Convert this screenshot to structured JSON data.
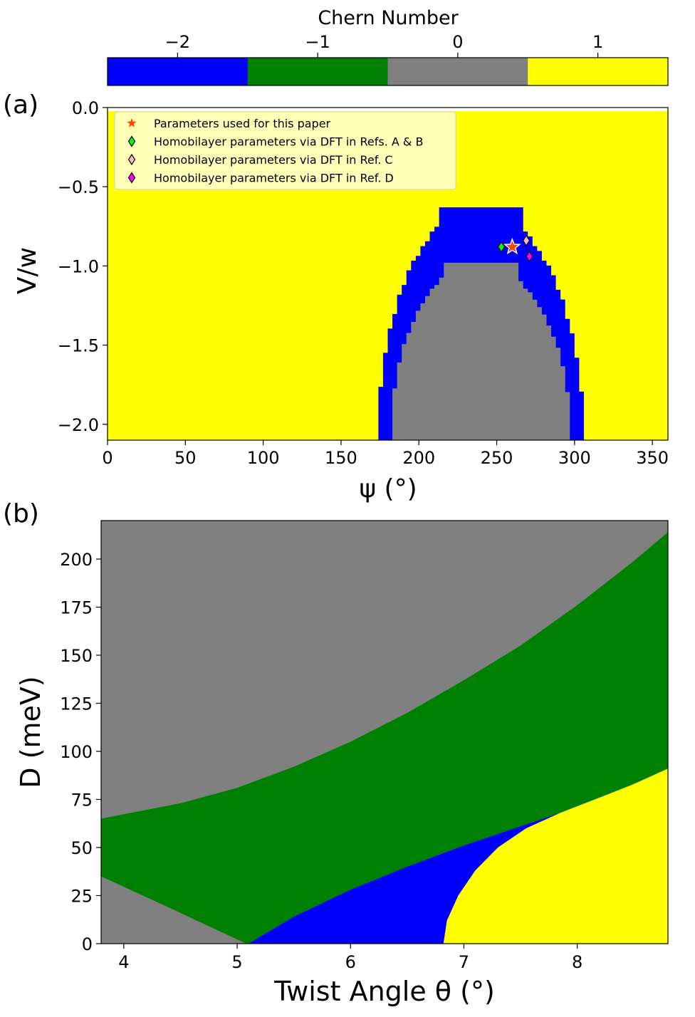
{
  "colorbar": {
    "label": "Chern Number",
    "tick_labels": [
      "−2",
      "−1",
      "0",
      "1"
    ],
    "entries": [
      {
        "value": -2,
        "color": "#0000ff"
      },
      {
        "value": -1,
        "color": "#008000"
      },
      {
        "value": 0,
        "color": "#808080"
      },
      {
        "value": 1,
        "color": "#ffff00"
      }
    ]
  },
  "chart_data": [
    {
      "type": "heatmap",
      "panel_label": "(a)",
      "title": "",
      "xlabel": "ψ (°)",
      "ylabel": "V/w",
      "xlim": [
        0,
        360
      ],
      "ylim": [
        -2.1,
        0.0
      ],
      "xticks": [
        0,
        50,
        100,
        150,
        200,
        250,
        300,
        350
      ],
      "xtick_labels": [
        "0",
        "50",
        "100",
        "150",
        "200",
        "250",
        "300",
        "350"
      ],
      "yticks": [
        0.0,
        -0.5,
        -1.0,
        -1.5,
        -2.0
      ],
      "ytick_labels": [
        "0.0",
        "−0.5",
        "−1.0",
        "−1.5",
        "−2.0"
      ],
      "background_chern": 1,
      "regions": [
        {
          "chern": -2,
          "name": "outer-dome",
          "center_psi": 240,
          "half_width_psi": 66,
          "top": -0.63,
          "bottom": -2.1
        },
        {
          "chern": 0,
          "name": "inner-dome",
          "center_psi": 240,
          "half_width_psi": 58,
          "top": -0.98,
          "bottom": -2.1
        }
      ],
      "legend_position": "upper-left",
      "series": [
        {
          "name": "Parameters used for this paper",
          "marker": "star",
          "color": "#ff4500",
          "points": [
            [
              260,
              -0.88
            ]
          ]
        },
        {
          "name": "Homobilayer parameters via DFT in Refs. A & B",
          "marker": "diamond",
          "color": "#00ff00",
          "points": [
            [
              253,
              -0.88
            ]
          ]
        },
        {
          "name": "Homobilayer parameters via DFT in Ref. C",
          "marker": "diamond",
          "color": "#ffb6c1",
          "points": [
            [
              269,
              -0.84
            ]
          ]
        },
        {
          "name": "Homobilayer parameters via DFT in Ref. D",
          "marker": "diamond",
          "color": "#ff00ff",
          "points": [
            [
              271,
              -0.94
            ]
          ]
        }
      ]
    },
    {
      "type": "area",
      "panel_label": "(b)",
      "title": "",
      "xlabel": "Twist Angle θ (°)",
      "ylabel": "D (meV)",
      "xlim": [
        3.8,
        8.8
      ],
      "ylim": [
        0,
        220
      ],
      "xticks": [
        4,
        5,
        6,
        7,
        8
      ],
      "xtick_labels": [
        "4",
        "5",
        "6",
        "7",
        "8"
      ],
      "yticks": [
        0,
        25,
        50,
        75,
        100,
        125,
        150,
        175,
        200
      ],
      "ytick_labels": [
        "0",
        "25",
        "50",
        "75",
        "100",
        "125",
        "150",
        "175",
        "200"
      ],
      "boundaries": [
        {
          "name": "upper-gray-green",
          "x": [
            3.8,
            4.5,
            5.0,
            5.5,
            6.0,
            6.5,
            7.0,
            7.5,
            8.0,
            8.5,
            8.8
          ],
          "y": [
            65,
            73,
            81,
            92,
            105,
            120,
            137,
            155,
            176,
            199,
            214
          ]
        },
        {
          "name": "lower-gray-green",
          "x": [
            3.8,
            4.5,
            5.08
          ],
          "y": [
            35,
            16,
            0
          ]
        },
        {
          "name": "green-blue",
          "x": [
            5.1,
            5.5,
            6.0,
            6.5,
            7.0,
            7.5,
            7.85
          ],
          "y": [
            0,
            14,
            28,
            40,
            51,
            61,
            68
          ]
        },
        {
          "name": "blue-yellow",
          "x": [
            6.82,
            6.85,
            6.95,
            7.1,
            7.3,
            7.55,
            7.85
          ],
          "y": [
            0,
            12,
            25,
            38,
            50,
            60,
            68
          ]
        },
        {
          "name": "green-yellow",
          "x": [
            7.85,
            8.2,
            8.5,
            8.8
          ],
          "y": [
            68,
            76,
            83,
            91
          ]
        }
      ],
      "regions": [
        {
          "chern": 0,
          "location": "upper-left and lower-left"
        },
        {
          "chern": -1,
          "location": "middle band"
        },
        {
          "chern": -2,
          "location": "lower wedge"
        },
        {
          "chern": 1,
          "location": "lower-right"
        }
      ]
    }
  ]
}
